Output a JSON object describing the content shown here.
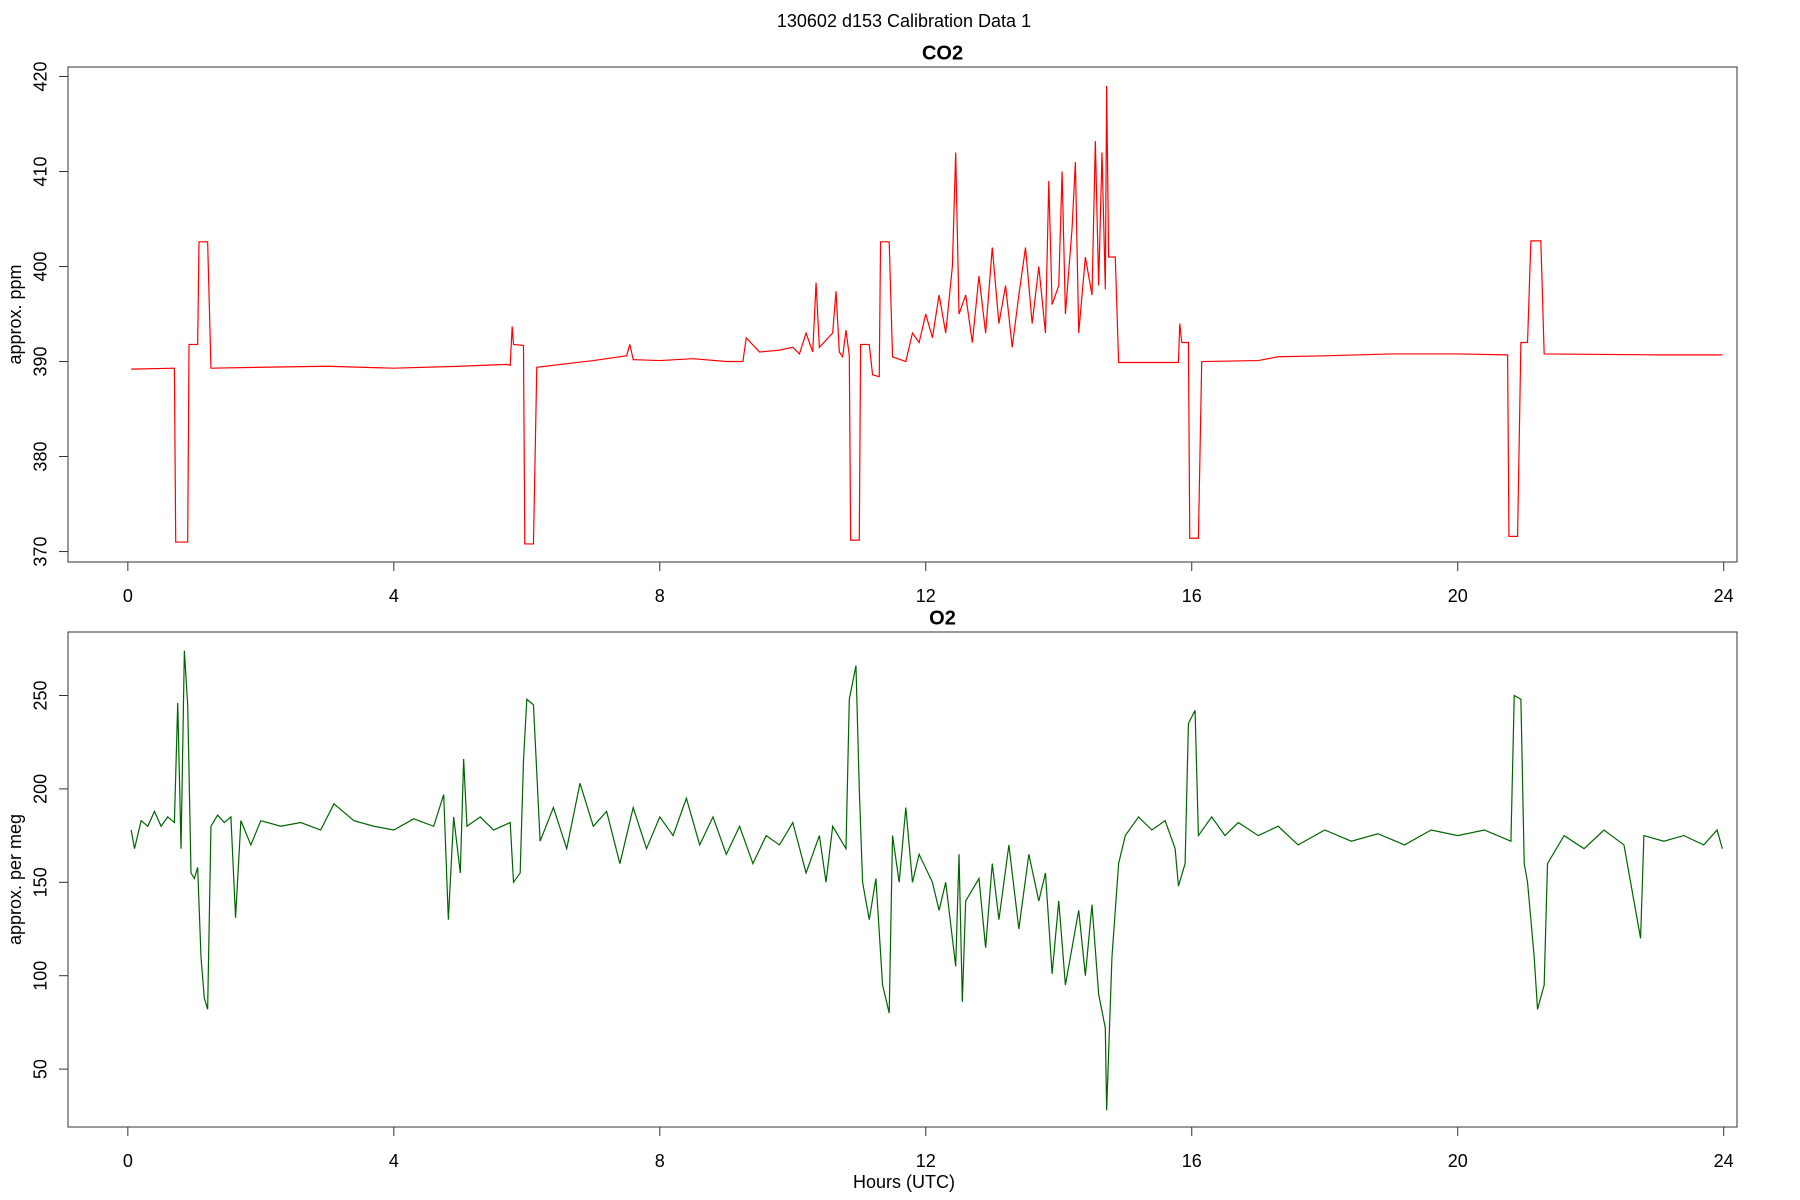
{
  "title": "130602   d153   Calibration Data 1",
  "chart_data": [
    {
      "type": "line",
      "title": "CO2",
      "ylabel": "approx. ppm",
      "color": "#ff0000",
      "xlim": [
        -0.9,
        24.2
      ],
      "ylim": [
        368.9,
        421
      ],
      "xticks": [
        0,
        4,
        8,
        12,
        16,
        20,
        24
      ],
      "yticks": [
        370,
        380,
        390,
        400,
        410,
        420
      ],
      "x": [
        0.05,
        0.7,
        0.72,
        0.9,
        0.92,
        1.05,
        1.07,
        1.2,
        1.25,
        2,
        3,
        4,
        5,
        5.7,
        5.75,
        5.78,
        5.8,
        5.95,
        5.97,
        6.1,
        6.15,
        7,
        7.5,
        7.55,
        7.6,
        8,
        8.5,
        9,
        9.25,
        9.3,
        9.5,
        9.8,
        10,
        10.1,
        10.2,
        10.3,
        10.35,
        10.4,
        10.6,
        10.65,
        10.7,
        10.75,
        10.8,
        10.85,
        10.87,
        11.0,
        11.02,
        11.15,
        11.2,
        11.3,
        11.32,
        11.45,
        11.5,
        11.7,
        11.8,
        11.9,
        12.0,
        12.1,
        12.2,
        12.3,
        12.4,
        12.45,
        12.5,
        12.6,
        12.7,
        12.8,
        12.9,
        13.0,
        13.1,
        13.2,
        13.3,
        13.4,
        13.5,
        13.6,
        13.7,
        13.8,
        13.85,
        13.9,
        14.0,
        14.05,
        14.1,
        14.2,
        14.25,
        14.3,
        14.4,
        14.5,
        14.55,
        14.6,
        14.65,
        14.7,
        14.72,
        14.75,
        14.85,
        14.9,
        15.5,
        15.8,
        15.82,
        15.85,
        15.95,
        15.97,
        16.1,
        16.15,
        17,
        17.3,
        18,
        19,
        20,
        20.75,
        20.77,
        20.9,
        20.95,
        21.05,
        21.1,
        21.25,
        21.3,
        23,
        23.98
      ],
      "values": [
        389.2,
        389.3,
        371,
        371,
        391.8,
        391.8,
        402.6,
        402.6,
        389.3,
        389.4,
        389.5,
        389.3,
        389.5,
        389.7,
        389.6,
        393.7,
        391.8,
        391.7,
        370.8,
        370.8,
        389.4,
        390.1,
        390.6,
        391.8,
        390.2,
        390.1,
        390.3,
        390,
        390,
        392.5,
        391,
        391.2,
        391.5,
        390.8,
        393,
        391,
        398.3,
        391.5,
        393,
        397.4,
        391,
        390.5,
        393.3,
        390.6,
        371.2,
        371.2,
        391.8,
        391.8,
        388.6,
        388.4,
        402.6,
        402.6,
        390.5,
        390,
        393,
        392,
        395,
        392.5,
        397,
        393,
        400,
        412,
        395,
        397,
        392,
        399,
        393,
        402,
        394,
        398,
        391.5,
        397,
        402,
        394,
        400,
        393,
        409,
        396,
        398,
        410,
        395,
        404,
        411,
        393,
        401,
        397,
        413.2,
        398,
        412,
        397.6,
        419,
        401,
        401,
        389.9,
        389.9,
        389.9,
        394,
        392,
        392,
        371.4,
        371.4,
        390,
        390.1,
        390.5,
        390.6,
        390.8,
        390.8,
        390.7,
        371.6,
        371.6,
        392,
        392,
        402.7,
        402.7,
        390.8,
        390.7,
        390.7
      ]
    },
    {
      "type": "line",
      "title": "O2",
      "ylabel": "approx. per meg",
      "xlabel": "Hours (UTC)",
      "color": "#006400",
      "xlim": [
        -0.9,
        24.2
      ],
      "ylim": [
        19,
        284
      ],
      "xticks": [
        0,
        4,
        8,
        12,
        16,
        20,
        24
      ],
      "yticks": [
        50,
        100,
        150,
        200,
        250
      ],
      "x": [
        0.05,
        0.1,
        0.2,
        0.3,
        0.4,
        0.5,
        0.6,
        0.7,
        0.75,
        0.8,
        0.85,
        0.9,
        0.95,
        1.0,
        1.05,
        1.1,
        1.15,
        1.2,
        1.25,
        1.35,
        1.45,
        1.55,
        1.62,
        1.7,
        1.85,
        2.0,
        2.3,
        2.6,
        2.9,
        3.1,
        3.4,
        3.7,
        4.0,
        4.3,
        4.6,
        4.75,
        4.82,
        4.9,
        5.0,
        5.05,
        5.1,
        5.3,
        5.5,
        5.75,
        5.8,
        5.9,
        5.95,
        6.0,
        6.1,
        6.2,
        6.4,
        6.6,
        6.8,
        7.0,
        7.2,
        7.4,
        7.6,
        7.8,
        8.0,
        8.2,
        8.4,
        8.6,
        8.8,
        9.0,
        9.2,
        9.4,
        9.6,
        9.8,
        10.0,
        10.2,
        10.4,
        10.5,
        10.6,
        10.8,
        10.85,
        10.95,
        11.0,
        11.05,
        11.15,
        11.25,
        11.35,
        11.45,
        11.5,
        11.6,
        11.7,
        11.8,
        11.9,
        12.1,
        12.2,
        12.3,
        12.45,
        12.5,
        12.55,
        12.6,
        12.8,
        12.9,
        13.0,
        13.1,
        13.25,
        13.4,
        13.55,
        13.7,
        13.8,
        13.9,
        14.0,
        14.1,
        14.3,
        14.4,
        14.5,
        14.6,
        14.7,
        14.72,
        14.8,
        14.9,
        15.0,
        15.2,
        15.4,
        15.6,
        15.75,
        15.8,
        15.9,
        15.95,
        16.05,
        16.1,
        16.3,
        16.5,
        16.7,
        17.0,
        17.3,
        17.6,
        18.0,
        18.4,
        18.8,
        19.2,
        19.6,
        20.0,
        20.4,
        20.8,
        20.85,
        20.95,
        21.0,
        21.05,
        21.15,
        21.2,
        21.3,
        21.35,
        21.6,
        21.9,
        22.2,
        22.5,
        22.75,
        22.8,
        23.1,
        23.4,
        23.7,
        23.9,
        23.98
      ],
      "values": [
        178,
        168,
        183,
        180,
        188,
        180,
        185,
        182,
        246,
        168,
        274,
        245,
        155,
        152,
        158,
        110,
        88,
        82,
        180,
        186,
        182,
        185,
        131,
        183,
        170,
        183,
        180,
        182,
        178,
        192,
        183,
        180,
        178,
        184,
        180,
        197,
        130,
        185,
        155,
        216,
        180,
        185,
        178,
        182,
        150,
        155,
        215,
        248,
        245,
        172,
        190,
        168,
        203,
        180,
        188,
        160,
        190,
        168,
        185,
        175,
        195,
        170,
        185,
        165,
        180,
        160,
        175,
        170,
        182,
        155,
        175,
        150,
        180,
        168,
        248,
        266,
        200,
        150,
        130,
        152,
        95,
        80,
        175,
        150,
        190,
        150,
        165,
        150,
        135,
        150,
        105,
        165,
        86,
        140,
        152,
        115,
        160,
        130,
        170,
        125,
        165,
        140,
        155,
        101,
        140,
        95,
        135,
        100,
        138,
        90,
        72,
        28,
        110,
        160,
        175,
        185,
        178,
        183,
        168,
        148,
        160,
        235,
        242,
        175,
        185,
        175,
        182,
        175,
        180,
        170,
        178,
        172,
        176,
        170,
        178,
        175,
        178,
        172,
        250,
        248,
        160,
        150,
        110,
        82,
        95,
        160,
        175,
        168,
        178,
        170,
        120,
        175,
        172,
        175,
        170,
        178,
        168
      ]
    }
  ]
}
